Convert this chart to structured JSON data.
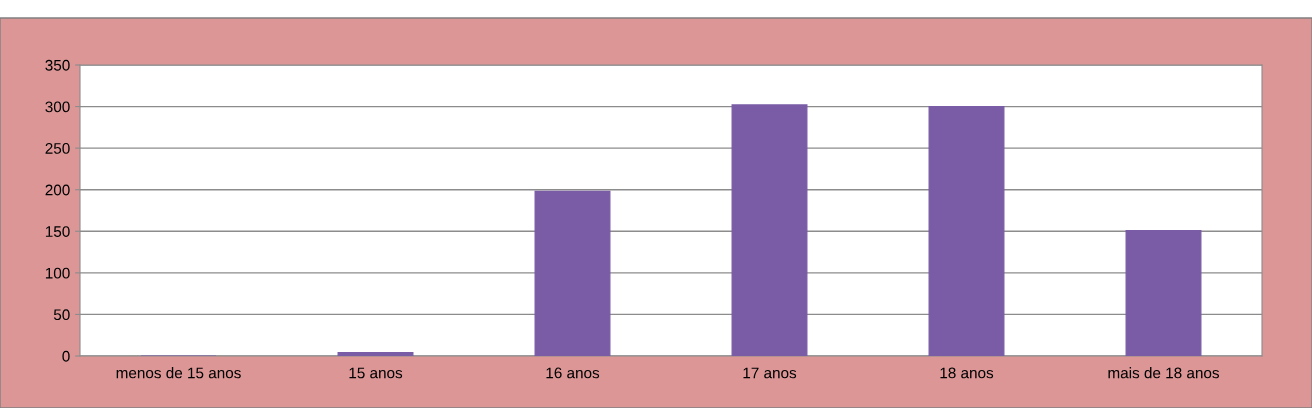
{
  "chart_data": {
    "type": "bar",
    "categories": [
      "menos de 15 anos",
      "15 anos",
      "16 anos",
      "17 anos",
      "18 anos",
      "mais de 18 anos"
    ],
    "values": [
      0,
      4,
      198,
      302,
      300,
      151
    ],
    "color": "#7a5ca6",
    "ylim": [
      0,
      350
    ],
    "yticks": [
      0,
      50,
      100,
      150,
      200,
      250,
      300,
      350
    ],
    "grid": "y",
    "legend": false
  }
}
